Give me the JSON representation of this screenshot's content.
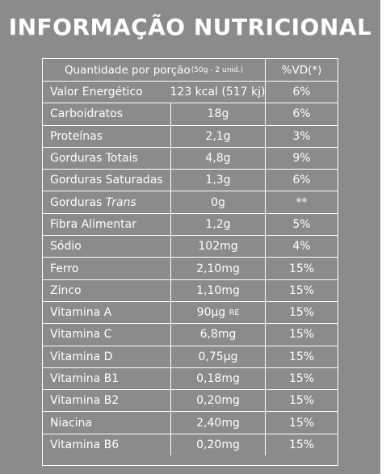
{
  "title": "INFORMAÇÃO NUTRICIONAL",
  "header": {
    "serving_label": "Quantidade por porção",
    "serving_detail": "(50g - 2 unid.)",
    "vd_label": "%VD(*)"
  },
  "rows": [
    {
      "name": "Valor Energético",
      "qty": "123 kcal (517 kj)",
      "vd": "6%"
    },
    {
      "name": "Carboidratos",
      "qty": "18g",
      "vd": "6%"
    },
    {
      "name": "Proteínas",
      "qty": "2,1g",
      "vd": "3%"
    },
    {
      "name": "Gorduras Totais",
      "qty": "4,8g",
      "vd": "9%"
    },
    {
      "name": "Gorduras Saturadas",
      "qty": "1,3g",
      "vd": "6%"
    },
    {
      "name_prefix": "Gorduras",
      "name_italic": "Trans",
      "qty": "0g",
      "vd": "**"
    },
    {
      "name": "Fibra Alimentar",
      "qty": "1,2g",
      "vd": "5%"
    },
    {
      "name": "Sódio",
      "qty": "102mg",
      "vd": "4%"
    },
    {
      "name": "Ferro",
      "qty": "2,10mg",
      "vd": "15%"
    },
    {
      "name": "Zinco",
      "qty": "1,10mg",
      "vd": "15%"
    },
    {
      "name": "Vitamina A",
      "qty_value": "90µg",
      "qty_unit": "RE",
      "vd": "15%"
    },
    {
      "name": "Vitamina C",
      "qty": "6,8mg",
      "vd": "15%"
    },
    {
      "name": "Vitamina D",
      "qty": "0,75µg",
      "vd": "15%"
    },
    {
      "name": "Vitamina B1",
      "qty": "0,18mg",
      "vd": "15%"
    },
    {
      "name": "Vitamina B2",
      "qty": "0,20mg",
      "vd": "15%"
    },
    {
      "name": "Niacina",
      "qty": "2,40mg",
      "vd": "15%"
    },
    {
      "name": "Vitamina B6",
      "qty": "0,20mg",
      "vd": "15%"
    }
  ]
}
